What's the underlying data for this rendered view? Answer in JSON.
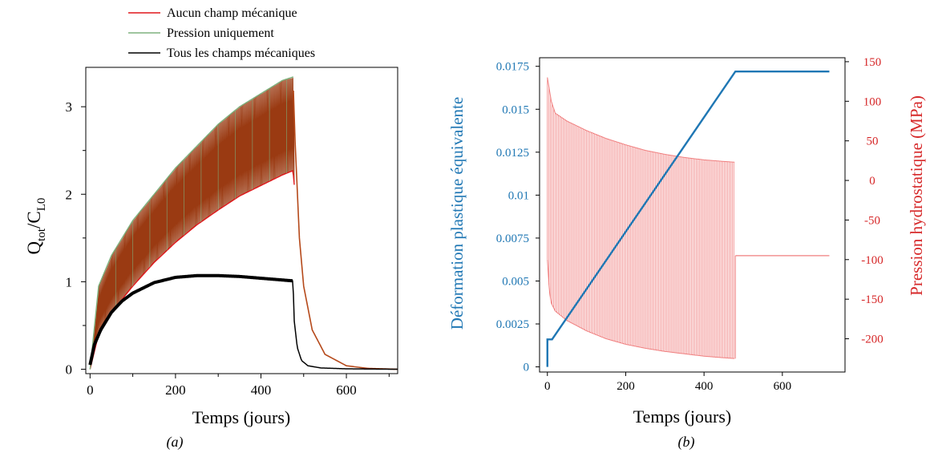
{
  "chart_data": [
    {
      "type": "line",
      "panel_label": "(a)",
      "xlabel": "Temps (jours)",
      "ylabel": {
        "base": "Q",
        "sub1": "tot",
        "sep": "/C",
        "sub2": "L0"
      },
      "xlim": [
        -10,
        720
      ],
      "ylim": [
        -0.05,
        3.45
      ],
      "xticks": [
        0,
        200,
        400,
        600
      ],
      "yticks": [
        0,
        1,
        2,
        3
      ],
      "legend_position": "top-center",
      "series": [
        {
          "name": "Aucun champ mécanique",
          "color": "#e0161b",
          "render": "oscillating-band",
          "upper": {
            "x": [
              0,
              20,
              50,
              100,
              150,
              200,
              250,
              300,
              350,
              400,
              450,
              475,
              480,
              490,
              500,
              520,
              550,
              600,
              650,
              720
            ],
            "y": [
              0,
              0.95,
              1.3,
              1.7,
              2.0,
              2.3,
              2.55,
              2.8,
              3.0,
              3.15,
              3.3,
              3.33,
              2.6,
              1.5,
              0.95,
              0.45,
              0.17,
              0.04,
              0.01,
              0.0
            ]
          },
          "lower": {
            "x": [
              0,
              20,
              50,
              100,
              150,
              200,
              250,
              300,
              350,
              400,
              450,
              475,
              480,
              490,
              500,
              520,
              550,
              600,
              650,
              720
            ],
            "y": [
              0,
              0.4,
              0.65,
              0.95,
              1.22,
              1.45,
              1.65,
              1.82,
              1.98,
              2.1,
              2.22,
              2.27,
              2.0,
              1.5,
              0.95,
              0.45,
              0.17,
              0.04,
              0.01,
              0.0
            ]
          }
        },
        {
          "name": "Pression uniquement",
          "color": "#7fb27f",
          "render": "overlay-envelope",
          "x": [
            0,
            20,
            50,
            100,
            150,
            200,
            250,
            300,
            350,
            400,
            450,
            475
          ],
          "y": [
            0,
            0.95,
            1.3,
            1.7,
            2.0,
            2.3,
            2.55,
            2.8,
            3.0,
            3.15,
            3.3,
            3.34
          ]
        },
        {
          "name": "Tous les champs mécaniques",
          "color": "#000000",
          "render": "thick-line",
          "x": [
            0,
            10,
            25,
            50,
            75,
            100,
            150,
            200,
            250,
            300,
            350,
            400,
            450,
            475,
            478,
            485,
            495,
            510,
            540,
            600,
            720
          ],
          "y": [
            0.05,
            0.28,
            0.45,
            0.65,
            0.78,
            0.87,
            0.99,
            1.05,
            1.07,
            1.07,
            1.06,
            1.04,
            1.02,
            1.01,
            0.55,
            0.25,
            0.1,
            0.04,
            0.015,
            0.005,
            0.0
          ]
        }
      ]
    },
    {
      "type": "line",
      "panel_label": "(b)",
      "xlabel": "Temps (jours)",
      "ylabel_left": "Déformation plastique équivalente",
      "ylabel_right": "Pression hydrostatique (MPa)",
      "xlim": [
        -20,
        760
      ],
      "ylim_left": [
        -0.0003,
        0.018
      ],
      "ylim_right": [
        -242,
        155
      ],
      "xticks": [
        0,
        200,
        400,
        600
      ],
      "yticks_left": [
        0,
        0.0025,
        0.005,
        0.0075,
        0.01,
        0.0125,
        0.015,
        0.0175
      ],
      "ytick_labels_left": [
        "0",
        "0.0025",
        "0.005",
        "0.0075",
        "0.01",
        "0.0125",
        "0.015",
        "0.0175"
      ],
      "yticks_right": [
        -200,
        -150,
        -100,
        -50,
        0,
        50,
        100,
        150
      ],
      "left_axis_color": "#1f77b4",
      "right_axis_color": "#d62728",
      "series": [
        {
          "axis": "left",
          "color": "#1f77b4",
          "x": [
            0,
            0,
            12,
            480,
            720
          ],
          "y": [
            0,
            0.0016,
            0.0016,
            0.0172,
            0.0172
          ]
        },
        {
          "axis": "right",
          "color": "#f07f7f",
          "render": "oscillating-band",
          "upper": {
            "x": [
              0,
              5,
              10,
              20,
              50,
              100,
              150,
              200,
              250,
              300,
              350,
              400,
              450,
              480
            ],
            "y": [
              130,
              115,
              100,
              85,
              75,
              63,
              53,
              45,
              38,
              33,
              29,
              26,
              24,
              23
            ]
          },
          "lower": {
            "x": [
              0,
              5,
              10,
              20,
              50,
              100,
              150,
              200,
              250,
              300,
              350,
              400,
              450,
              480
            ],
            "y": [
              -100,
              -140,
              -155,
              -165,
              -177,
              -190,
              -200,
              -207,
              -212,
              -216,
              -219,
              -222,
              -224,
              -225
            ]
          },
          "tail": {
            "x": [
              480,
              720
            ],
            "y": [
              -95,
              -95
            ]
          }
        }
      ]
    }
  ]
}
